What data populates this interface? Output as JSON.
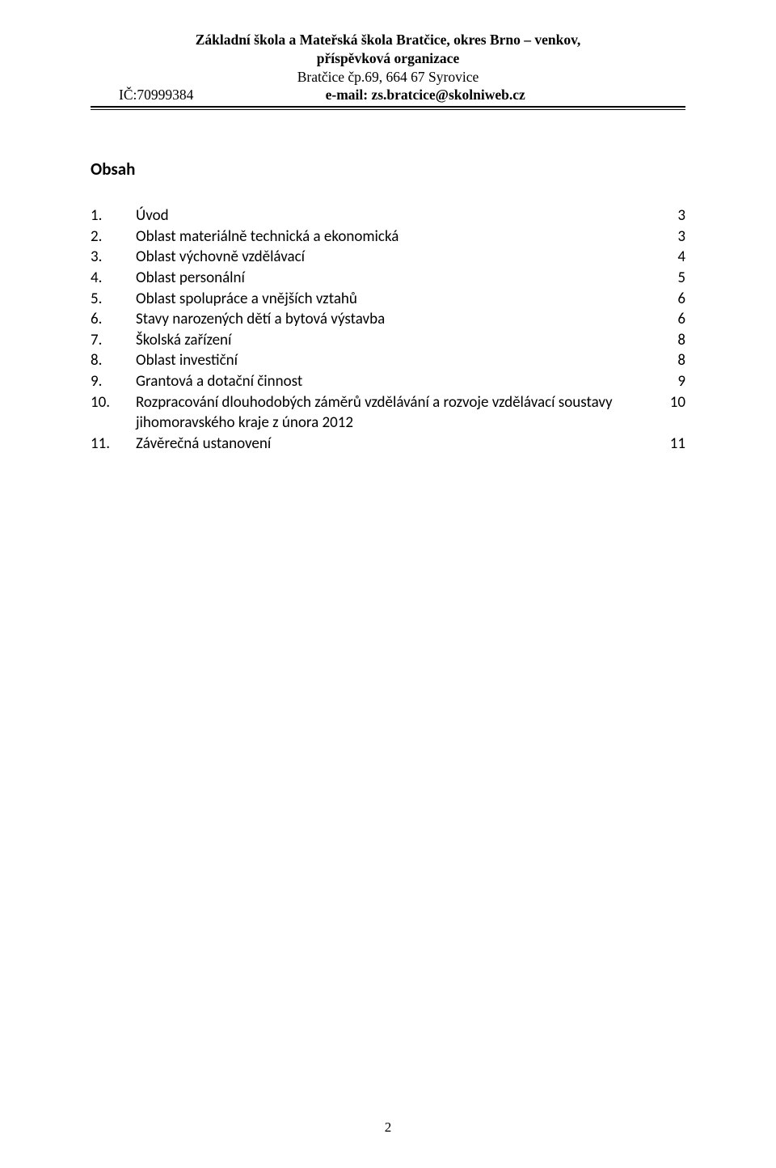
{
  "header": {
    "line1": "Základní škola a Mateřská škola Bratčice, okres Brno – venkov,",
    "line2": "příspěvková organizace",
    "line3": "Bratčice čp.69, 664 67  Syrovice",
    "ic": "IČ:70999384",
    "email": "e-mail: zs.bratcice@skolniweb.cz"
  },
  "section_title": "Obsah",
  "toc": [
    {
      "num": "1.",
      "label": "Úvod",
      "page": "3"
    },
    {
      "num": "2.",
      "label": "Oblast materiálně technická a ekonomická",
      "page": "3"
    },
    {
      "num": "3.",
      "label": "Oblast výchovně vzdělávací",
      "page": "4"
    },
    {
      "num": "4.",
      "label": "Oblast personální",
      "page": "5"
    },
    {
      "num": "5.",
      "label": "Oblast spolupráce a vnějších vztahů",
      "page": "6"
    },
    {
      "num": "6.",
      "label": "Stavy narozených dětí a bytová výstavba",
      "page": "6"
    },
    {
      "num": "7.",
      "label": "Školská zařízení",
      "page": "8"
    },
    {
      "num": "8.",
      "label": "Oblast investiční",
      "page": "8"
    },
    {
      "num": "9.",
      "label": "Grantová a dotační činnost",
      "page": "9"
    },
    {
      "num": "10.",
      "label": "Rozpracování dlouhodobých záměrů vzdělávání a rozvoje vzdělávací soustavy jihomoravského kraje z února 2012",
      "page": "10"
    },
    {
      "num": "11.",
      "label": "Závěrečná ustanovení",
      "page": "11"
    }
  ],
  "page_number": "2"
}
